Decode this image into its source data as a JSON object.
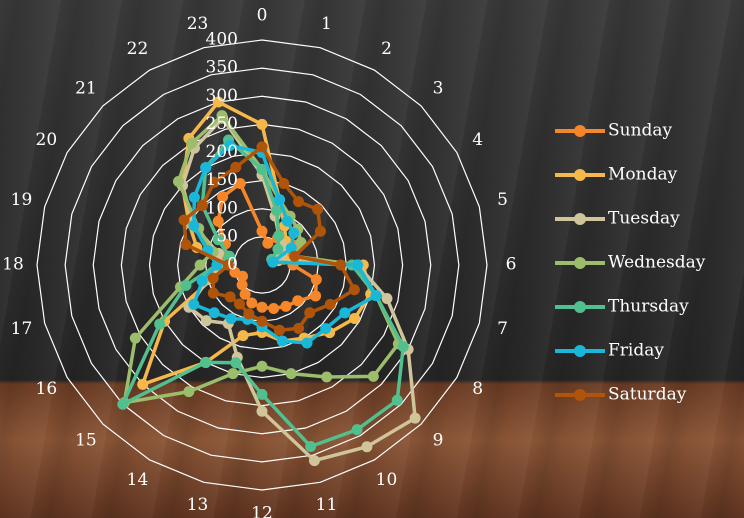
{
  "chart_data": {
    "type": "radar",
    "categories": [
      "0",
      "1",
      "2",
      "3",
      "4",
      "5",
      "6",
      "7",
      "8",
      "9",
      "10",
      "11",
      "12",
      "13",
      "14",
      "15",
      "16",
      "17",
      "18",
      "19",
      "20",
      "21",
      "22",
      "23"
    ],
    "rlim": [
      0,
      400
    ],
    "rticks": [
      0,
      50,
      100,
      150,
      200,
      250,
      300,
      350,
      400
    ],
    "grid": true,
    "legend": "right",
    "series": [
      {
        "name": "Sunday",
        "color": "#f5862a",
        "values": [
          60,
          40,
          55,
          60,
          70,
          55,
          55,
          100,
          110,
          90,
          85,
          80,
          75,
          70,
          60,
          50,
          40,
          50,
          60,
          70,
          75,
          110,
          140,
          150
        ]
      },
      {
        "name": "Monday",
        "color": "#f6b84a",
        "values": [
          250,
          120,
          80,
          60,
          40,
          40,
          180,
          200,
          190,
          170,
          150,
          140,
          120,
          130,
          200,
          300,
          200,
          90,
          70,
          120,
          150,
          200,
          260,
          300
        ]
      },
      {
        "name": "Tuesday",
        "color": "#cfc49a",
        "values": [
          160,
          90,
          60,
          50,
          40,
          30,
          170,
          230,
          300,
          385,
          373,
          360,
          260,
          170,
          120,
          140,
          150,
          100,
          70,
          80,
          140,
          200,
          240,
          270
        ]
      },
      {
        "name": "Wednesday",
        "color": "#9cbd6b",
        "values": [
          170,
          120,
          100,
          90,
          80,
          60,
          170,
          210,
          280,
          280,
          230,
          200,
          180,
          200,
          260,
          346,
          260,
          150,
          110,
          90,
          130,
          210,
          250,
          275
        ]
      },
      {
        "name": "Thursday",
        "color": "#52bf8e",
        "values": [
          170,
          100,
          60,
          40,
          20,
          20,
          160,
          210,
          290,
          340,
          338,
          334,
          230,
          180,
          200,
          350,
          210,
          140,
          80,
          60,
          90,
          150,
          200,
          230
        ]
      },
      {
        "name": "Friday",
        "color": "#1ab8d8",
        "values": [
          200,
          120,
          90,
          80,
          60,
          20,
          170,
          210,
          170,
          160,
          160,
          140,
          110,
          100,
          110,
          120,
          140,
          110,
          80,
          100,
          140,
          170,
          200,
          220
        ]
      },
      {
        "name": "Saturday",
        "color": "#b0540a",
        "values": [
          210,
          150,
          130,
          140,
          120,
          60,
          140,
          170,
          140,
          120,
          130,
          120,
          100,
          90,
          80,
          80,
          100,
          90,
          60,
          140,
          160,
          150,
          170,
          180
        ]
      }
    ]
  }
}
